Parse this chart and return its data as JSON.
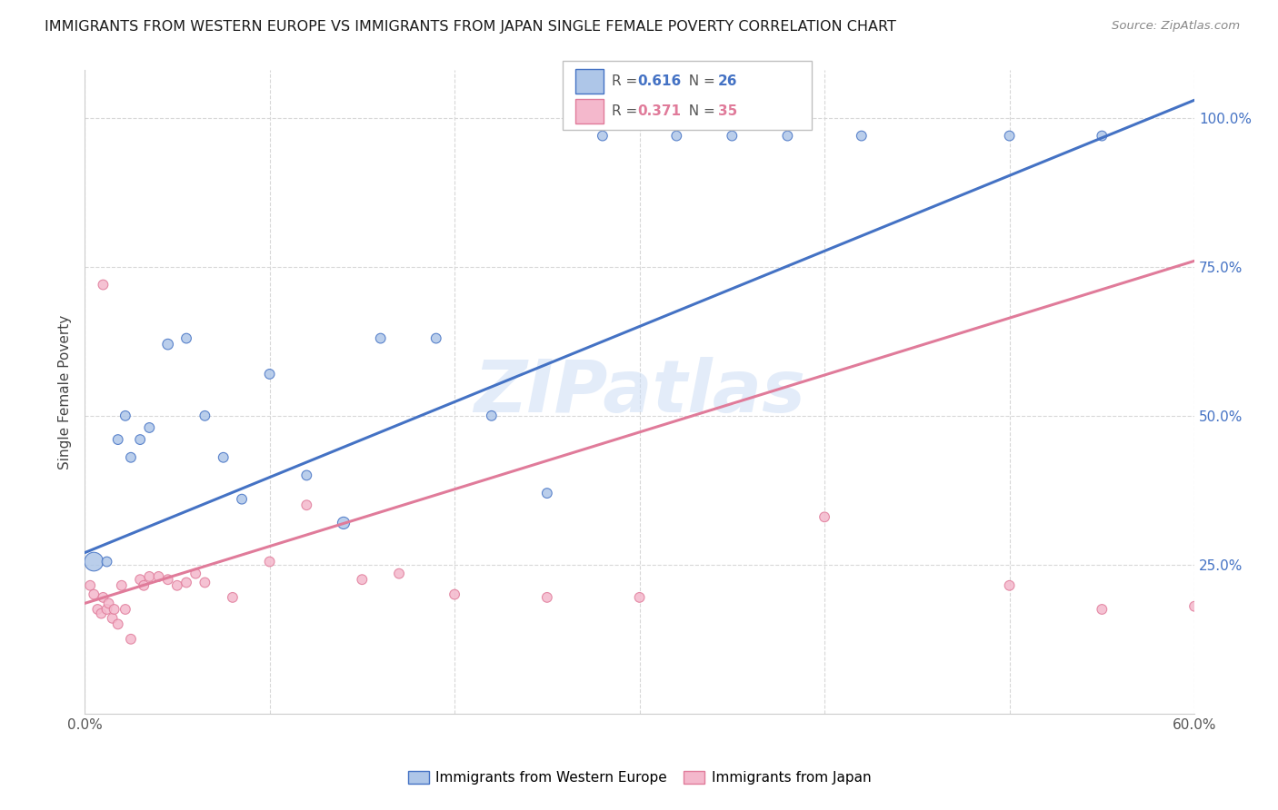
{
  "title": "IMMIGRANTS FROM WESTERN EUROPE VS IMMIGRANTS FROM JAPAN SINGLE FEMALE POVERTY CORRELATION CHART",
  "source": "Source: ZipAtlas.com",
  "ylabel": "Single Female Poverty",
  "legend_label1": "Immigrants from Western Europe",
  "legend_label2": "Immigrants from Japan",
  "watermark": "ZIPatlas",
  "ytick_labels": [
    "100.0%",
    "75.0%",
    "50.0%",
    "25.0%"
  ],
  "ytick_values": [
    1.0,
    0.75,
    0.5,
    0.25
  ],
  "xlim": [
    0.0,
    0.6
  ],
  "ylim": [
    0.0,
    1.08
  ],
  "background_color": "#ffffff",
  "grid_color": "#d8d8d8",
  "blue_line_color": "#4472c4",
  "pink_line_color": "#e07b9a",
  "blue_scatter_color": "#aec6e8",
  "pink_scatter_color": "#f4b8cc",
  "title_fontsize": 11.5,
  "source_fontsize": 9.5,
  "blue_scatter_x": [
    0.005,
    0.012,
    0.018,
    0.022,
    0.025,
    0.03,
    0.035,
    0.045,
    0.055,
    0.065,
    0.075,
    0.085,
    0.1,
    0.12,
    0.14,
    0.16,
    0.19,
    0.22,
    0.25,
    0.28,
    0.32,
    0.35,
    0.38,
    0.42,
    0.5,
    0.55
  ],
  "blue_scatter_y": [
    0.255,
    0.255,
    0.46,
    0.5,
    0.43,
    0.46,
    0.48,
    0.62,
    0.63,
    0.5,
    0.43,
    0.36,
    0.57,
    0.4,
    0.32,
    0.63,
    0.63,
    0.5,
    0.37,
    0.97,
    0.97,
    0.97,
    0.97,
    0.97,
    0.97,
    0.97
  ],
  "blue_scatter_size": [
    220,
    60,
    60,
    60,
    60,
    60,
    60,
    70,
    60,
    60,
    60,
    60,
    60,
    60,
    90,
    60,
    60,
    60,
    60,
    60,
    60,
    60,
    60,
    60,
    60,
    60
  ],
  "pink_scatter_x": [
    0.003,
    0.005,
    0.007,
    0.009,
    0.01,
    0.012,
    0.013,
    0.015,
    0.016,
    0.018,
    0.02,
    0.022,
    0.025,
    0.03,
    0.032,
    0.035,
    0.04,
    0.045,
    0.05,
    0.055,
    0.06,
    0.065,
    0.08,
    0.1,
    0.12,
    0.15,
    0.17,
    0.2,
    0.25,
    0.3,
    0.4,
    0.5,
    0.55,
    0.6,
    0.01
  ],
  "pink_scatter_y": [
    0.215,
    0.2,
    0.175,
    0.168,
    0.195,
    0.175,
    0.185,
    0.16,
    0.175,
    0.15,
    0.215,
    0.175,
    0.125,
    0.225,
    0.215,
    0.23,
    0.23,
    0.225,
    0.215,
    0.22,
    0.235,
    0.22,
    0.195,
    0.255,
    0.35,
    0.225,
    0.235,
    0.2,
    0.195,
    0.195,
    0.33,
    0.215,
    0.175,
    0.18,
    0.72
  ],
  "pink_scatter_size": [
    60,
    60,
    60,
    60,
    60,
    60,
    60,
    60,
    60,
    60,
    60,
    60,
    60,
    60,
    60,
    60,
    60,
    60,
    60,
    60,
    60,
    60,
    60,
    60,
    60,
    60,
    60,
    60,
    60,
    60,
    60,
    60,
    60,
    60,
    60
  ],
  "blue_line_x0": 0.0,
  "blue_line_y0": 0.27,
  "blue_line_x1": 0.6,
  "blue_line_y1": 1.03,
  "pink_line_x0": 0.0,
  "pink_line_y0": 0.185,
  "pink_line_x1": 0.6,
  "pink_line_y1": 0.76
}
